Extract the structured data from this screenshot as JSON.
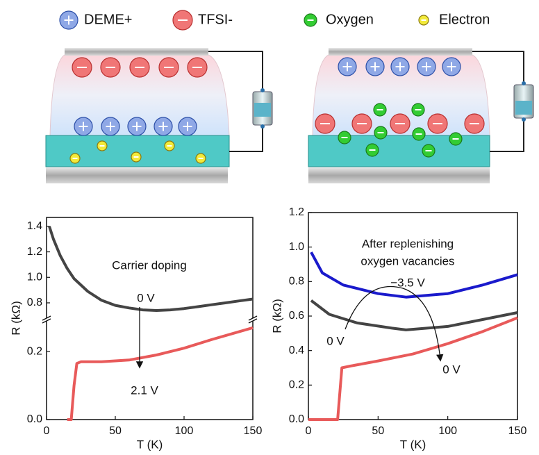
{
  "legend": [
    "DEME+",
    "TFSI-",
    "Oxygen",
    "Electron"
  ],
  "chart_data": [
    {
      "type": "line",
      "xlabel": "T (K)",
      "ylabel": "R (kΩ)",
      "annotations": [
        "Carrier doping"
      ],
      "xlim": [
        0,
        150
      ],
      "xticks": [
        0,
        50,
        100,
        150
      ],
      "panels": [
        {
          "ylim": [
            0,
            0.29
          ],
          "yticks": [
            {
              "value": 0,
              "label": "0.0"
            },
            {
              "value": 0.2,
              "label": "0.2"
            }
          ]
        },
        {
          "ylim": [
            0.68,
            1.47
          ],
          "yticks": [
            {
              "value": 0.8,
              "label": "0.8"
            },
            {
              "value": 1.0,
              "label": "1.0"
            },
            {
              "value": 1.2,
              "label": "1.2"
            },
            {
              "value": 1.4,
              "label": "1.4"
            }
          ]
        }
      ],
      "series": [
        {
          "name": "0 V",
          "color": "#444444",
          "x": [
            2,
            5,
            10,
            15,
            20,
            30,
            40,
            50,
            60,
            70,
            80,
            90,
            100,
            110,
            120,
            130,
            140,
            150
          ],
          "values": [
            1.4,
            1.3,
            1.17,
            1.07,
            0.99,
            0.89,
            0.82,
            0.78,
            0.76,
            0.745,
            0.74,
            0.745,
            0.755,
            0.77,
            0.785,
            0.8,
            0.815,
            0.83
          ]
        },
        {
          "name": "2.1 V",
          "color": "#e85a5a",
          "x": [
            15,
            18,
            20,
            22,
            25,
            40,
            60,
            80,
            100,
            120,
            150
          ],
          "values": [
            0,
            0,
            0.1,
            0.165,
            0.17,
            0.17,
            0.175,
            0.19,
            0.21,
            0.235,
            0.27
          ]
        }
      ]
    },
    {
      "type": "line",
      "xlabel": "T (K)",
      "ylabel": "R (kΩ)",
      "annotations": [
        "After replenishing",
        "oxygen vacancies"
      ],
      "xlim": [
        0,
        150
      ],
      "xticks": [
        0,
        50,
        100,
        150
      ],
      "ylim": [
        0,
        1.2
      ],
      "yticks": [
        {
          "value": 0,
          "label": "0.0"
        },
        {
          "value": 0.2,
          "label": "0.2"
        },
        {
          "value": 0.4,
          "label": "0.4"
        },
        {
          "value": 0.6,
          "label": "0.6"
        },
        {
          "value": 0.8,
          "label": "0.8"
        },
        {
          "value": 1.0,
          "label": "1.0"
        },
        {
          "value": 1.2,
          "label": "1.2"
        }
      ],
      "series": [
        {
          "name": "−3.5 V",
          "color": "#1a1acc",
          "x": [
            2,
            10,
            25,
            50,
            70,
            100,
            125,
            150
          ],
          "values": [
            0.97,
            0.85,
            0.78,
            0.73,
            0.71,
            0.73,
            0.78,
            0.84
          ]
        },
        {
          "name": "0 V",
          "color": "#444444",
          "x": [
            2,
            15,
            35,
            60,
            70,
            100,
            125,
            150
          ],
          "values": [
            0.69,
            0.61,
            0.56,
            0.53,
            0.52,
            0.54,
            0.58,
            0.62
          ]
        },
        {
          "name": "0 V",
          "color": "#e85a5a",
          "x": [
            0,
            21,
            24,
            30,
            50,
            75,
            100,
            125,
            150
          ],
          "values": [
            0,
            0,
            0.3,
            0.31,
            0.34,
            0.38,
            0.44,
            0.51,
            0.59
          ]
        }
      ]
    }
  ]
}
